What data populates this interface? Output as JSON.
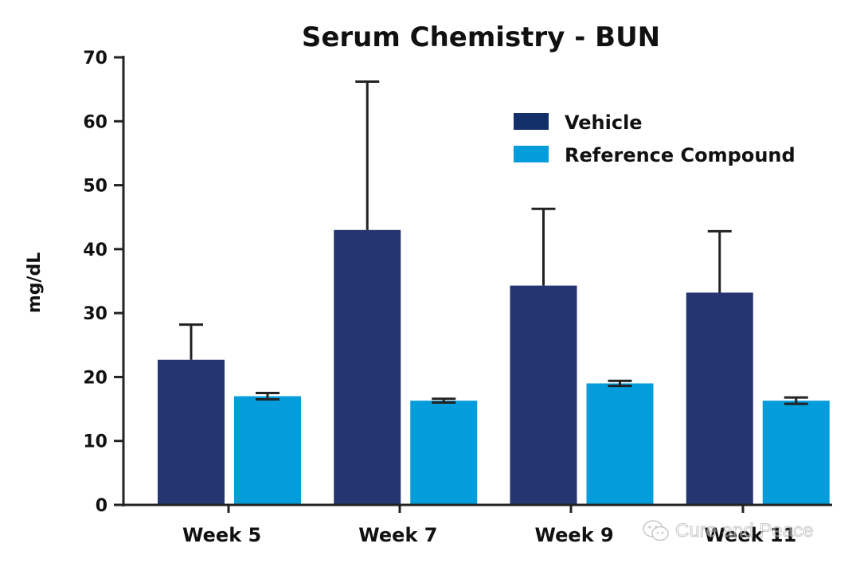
{
  "chart_data": {
    "type": "bar",
    "title": "Serum Chemistry - BUN",
    "xlabel": "",
    "ylabel": "mg/dL",
    "ylim": [
      0,
      70
    ],
    "yticks": [
      0,
      10,
      20,
      30,
      40,
      50,
      60,
      70
    ],
    "categories": [
      "Week 5",
      "Week 7",
      "Week 9",
      "Week 11"
    ],
    "series": [
      {
        "name": "Vehicle",
        "color": "#243572",
        "values": [
          22.7,
          43.0,
          34.3,
          33.2
        ],
        "errors": [
          5.5,
          23.2,
          12.0,
          9.6
        ]
      },
      {
        "name": "Reference Compound",
        "color": "#039ddc",
        "values": [
          17.0,
          16.3,
          19.0,
          16.3
        ],
        "errors": [
          0.5,
          0.3,
          0.4,
          0.5
        ]
      }
    ],
    "legend_colors": [
      "#13306a",
      "#039ddc"
    ],
    "legend_position": "top-right",
    "error_bars": true,
    "grid": false
  },
  "watermark": {
    "text": "Cure and Peace",
    "icon": "wechat-icon"
  }
}
